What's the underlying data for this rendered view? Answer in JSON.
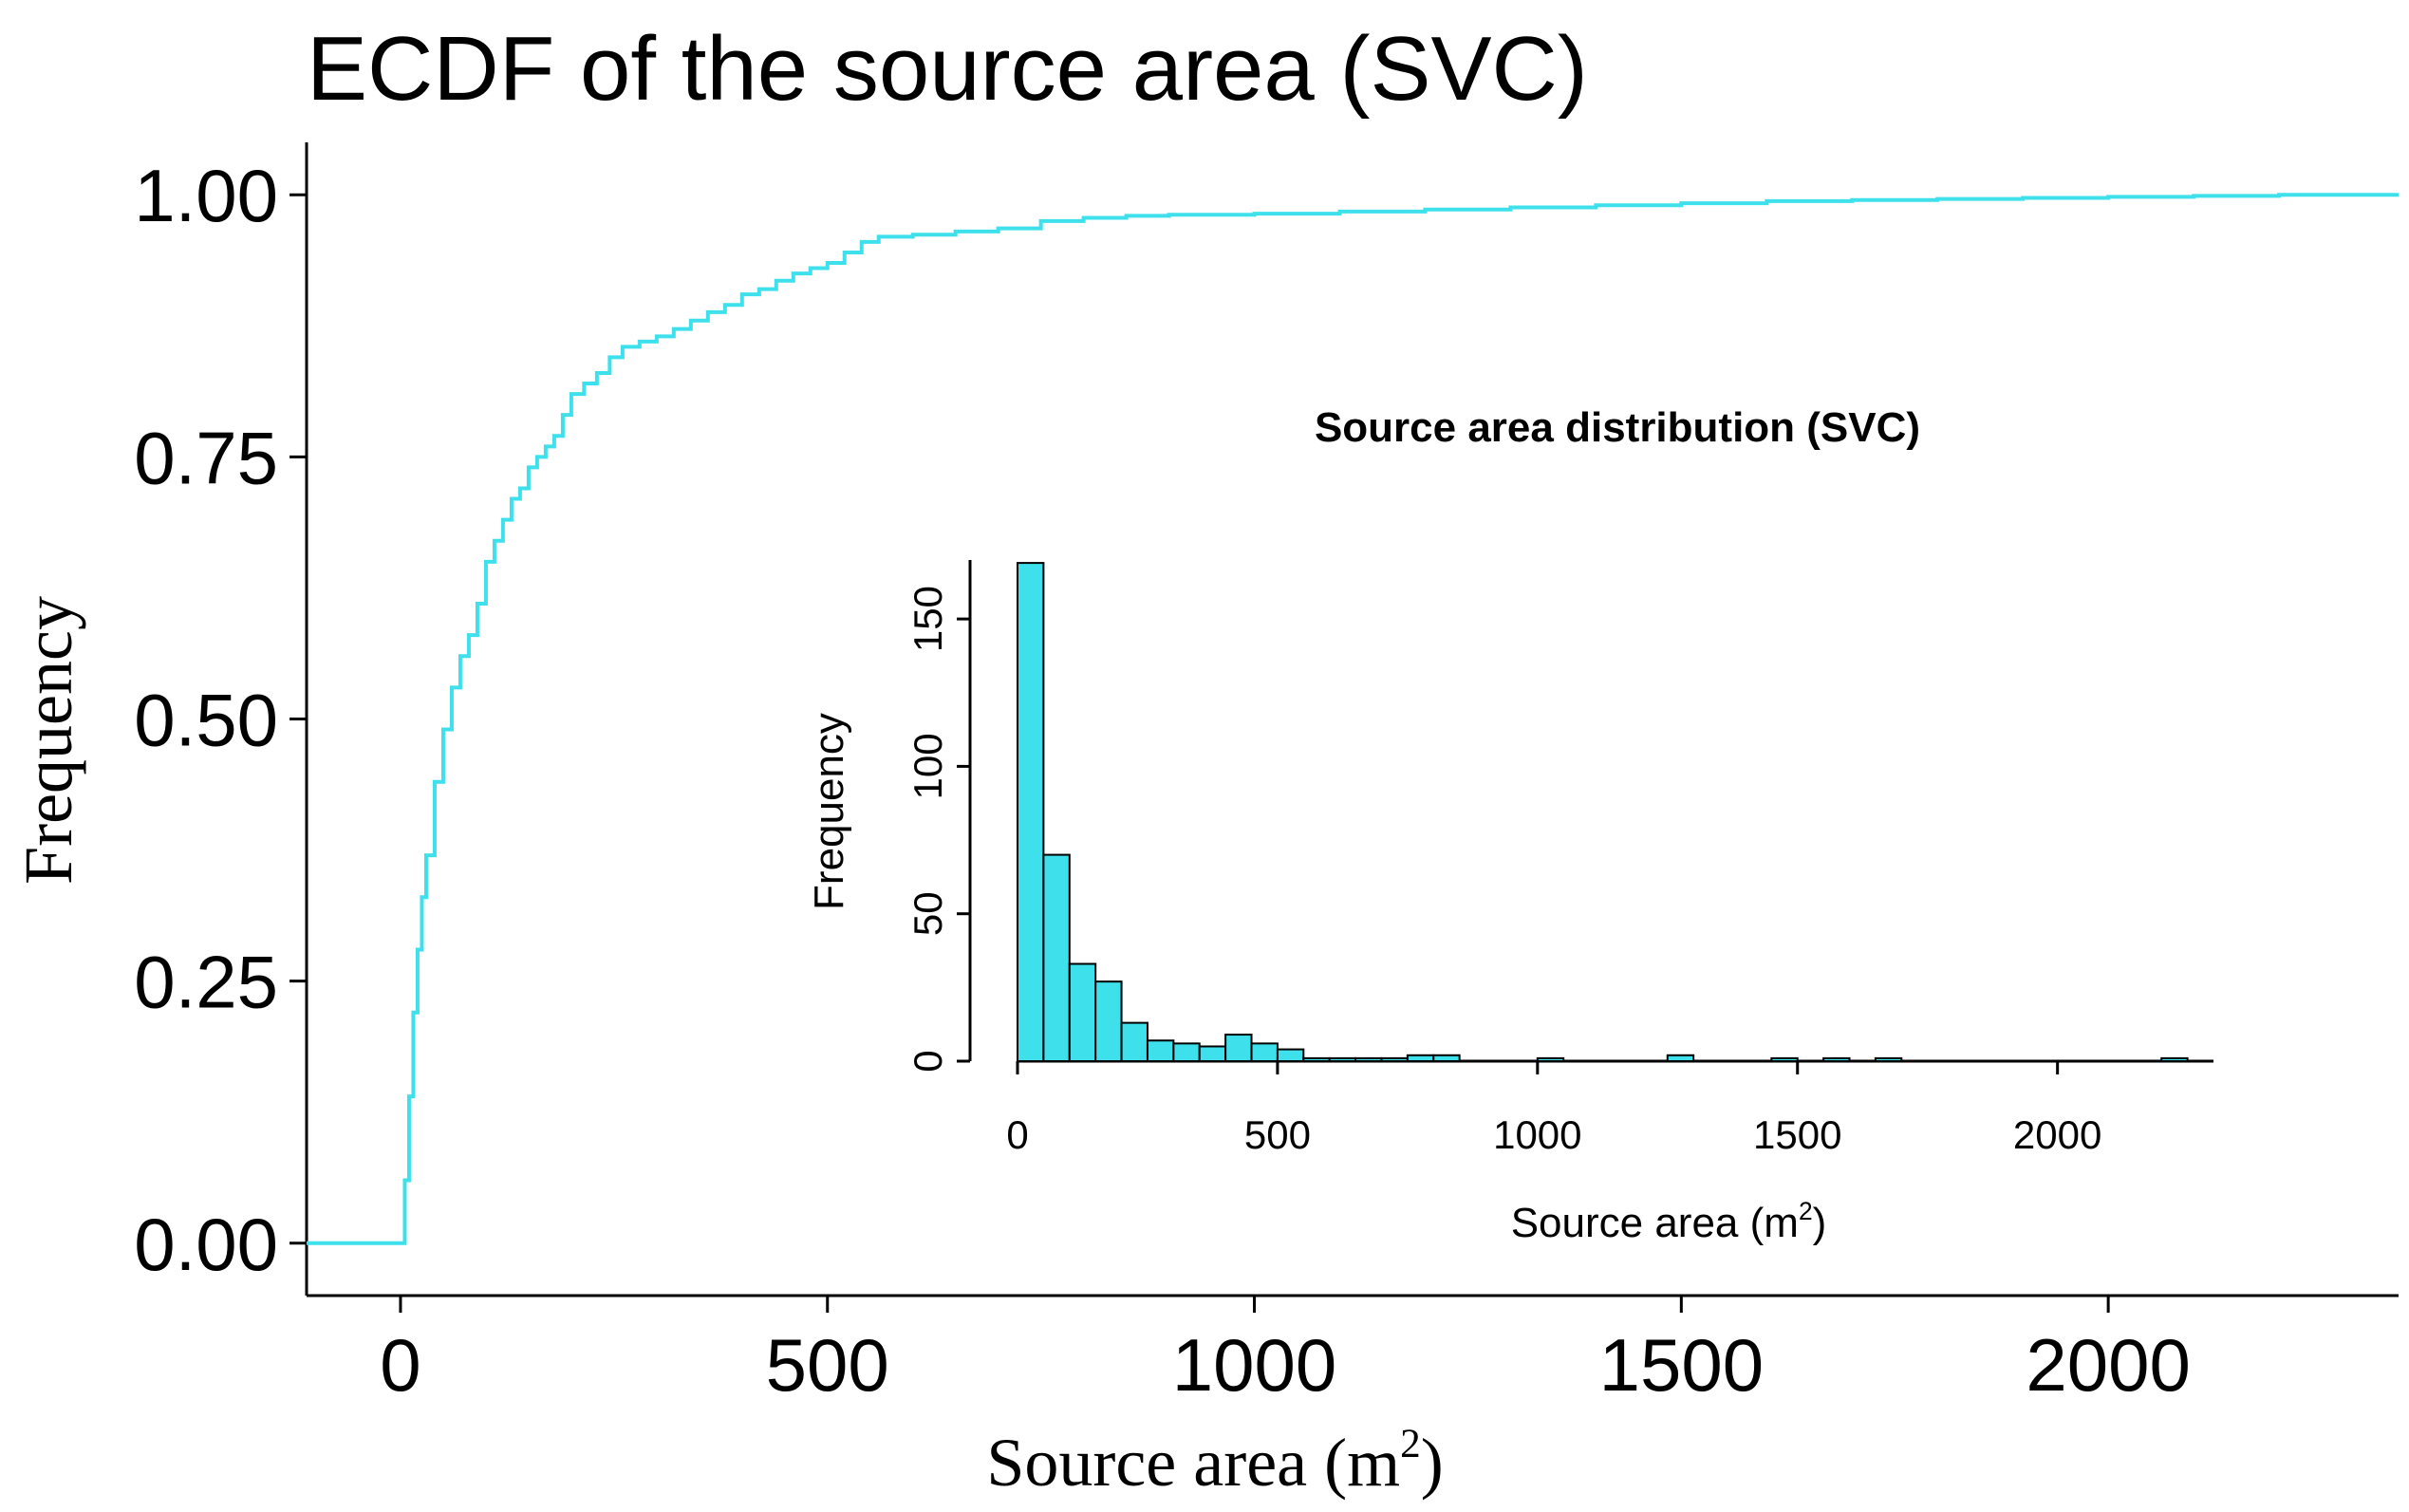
{
  "chart_data": [
    {
      "type": "line",
      "subtype": "ecdf-step",
      "title": "ECDF of the source area (SVC)",
      "xlabel": "Source area (m",
      "xlabel_sup": "2",
      "xlabel_close": ")",
      "ylabel": "Frequency",
      "xlim": [
        -110,
        2340
      ],
      "ylim": [
        -0.05,
        1.05
      ],
      "xticks": [
        0,
        500,
        1000,
        1500,
        2000
      ],
      "xtick_labels": [
        "0",
        "500",
        "1000",
        "1500",
        "2000"
      ],
      "yticks": [
        0,
        0.25,
        0.5,
        0.75,
        1.0
      ],
      "ytick_labels": [
        "0.00",
        "0.25",
        "0.50",
        "0.75",
        "1.00"
      ],
      "color": "#3ee0ec",
      "x": [
        -110,
        0,
        5,
        10,
        15,
        20,
        25,
        30,
        40,
        50,
        60,
        70,
        80,
        90,
        100,
        110,
        120,
        130,
        140,
        150,
        160,
        170,
        180,
        190,
        200,
        215,
        230,
        245,
        260,
        280,
        300,
        320,
        340,
        360,
        380,
        400,
        420,
        440,
        460,
        480,
        500,
        520,
        540,
        560,
        600,
        650,
        700,
        750,
        800,
        850,
        900,
        1000,
        1100,
        1200,
        1300,
        1400,
        1500,
        1600,
        1700,
        1800,
        1900,
        2000,
        2100,
        2200,
        2340
      ],
      "y": [
        0.0,
        0.0,
        0.06,
        0.14,
        0.22,
        0.28,
        0.33,
        0.37,
        0.44,
        0.49,
        0.53,
        0.56,
        0.58,
        0.61,
        0.65,
        0.67,
        0.69,
        0.71,
        0.72,
        0.74,
        0.75,
        0.76,
        0.77,
        0.79,
        0.81,
        0.82,
        0.83,
        0.845,
        0.855,
        0.86,
        0.865,
        0.872,
        0.88,
        0.888,
        0.895,
        0.905,
        0.91,
        0.918,
        0.925,
        0.93,
        0.935,
        0.945,
        0.955,
        0.96,
        0.962,
        0.965,
        0.968,
        0.975,
        0.978,
        0.98,
        0.981,
        0.982,
        0.984,
        0.986,
        0.988,
        0.99,
        0.992,
        0.994,
        0.995,
        0.996,
        0.997,
        0.998,
        0.999,
        1.0,
        1.0
      ]
    },
    {
      "type": "bar",
      "subtype": "histogram",
      "title": "Source area distribution (SVC)",
      "xlabel": "Source area (m",
      "xlabel_sup": "2",
      "xlabel_close": ")",
      "ylabel": "Frequency",
      "bin_width": 50,
      "xlim": [
        0,
        2300
      ],
      "ylim": [
        0,
        170
      ],
      "xticks": [
        0,
        500,
        1000,
        1500,
        2000
      ],
      "xtick_labels": [
        "0",
        "500",
        "1000",
        "1500",
        "2000"
      ],
      "yticks": [
        0,
        50,
        100,
        150
      ],
      "ytick_labels": [
        "0",
        "50",
        "100",
        "150"
      ],
      "fill_color": "#3ee0ec",
      "edge_color": "#000000",
      "bins": [
        {
          "start": 0,
          "count": 169
        },
        {
          "start": 50,
          "count": 70
        },
        {
          "start": 100,
          "count": 33
        },
        {
          "start": 150,
          "count": 27
        },
        {
          "start": 200,
          "count": 13
        },
        {
          "start": 250,
          "count": 7
        },
        {
          "start": 300,
          "count": 6
        },
        {
          "start": 350,
          "count": 5
        },
        {
          "start": 400,
          "count": 9
        },
        {
          "start": 450,
          "count": 6
        },
        {
          "start": 500,
          "count": 4
        },
        {
          "start": 550,
          "count": 1
        },
        {
          "start": 600,
          "count": 1
        },
        {
          "start": 650,
          "count": 1
        },
        {
          "start": 700,
          "count": 1
        },
        {
          "start": 750,
          "count": 2
        },
        {
          "start": 800,
          "count": 2
        },
        {
          "start": 1000,
          "count": 1
        },
        {
          "start": 1250,
          "count": 2
        },
        {
          "start": 1450,
          "count": 1
        },
        {
          "start": 1550,
          "count": 1
        },
        {
          "start": 1650,
          "count": 1
        },
        {
          "start": 2200,
          "count": 1
        }
      ]
    }
  ]
}
